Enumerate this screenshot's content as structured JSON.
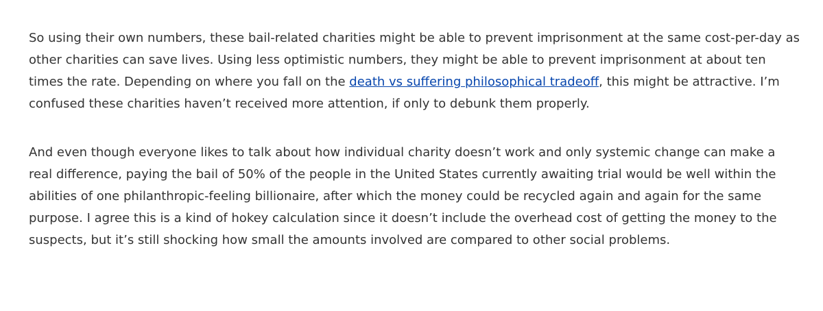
{
  "article": {
    "paragraph_1": {
      "text_before_link": "So using their own numbers, these bail-related charities might be able to prevent imprisonment at the same cost-per-day as other charities can save lives. Using less optimistic numbers, they might be able to prevent imprisonment at about ten times the rate. Depending on where you fall on the ",
      "link_text": "death vs suffering philosophical tradeoff",
      "text_after_link": ", this might be attractive. I’m confused these charities haven’t received more attention, if only to debunk them properly."
    },
    "paragraph_2": {
      "text": "And even though everyone likes to talk about how individual charity doesn’t work and only systemic change can make a real difference, paying the bail of 50% of the people in the United States currently awaiting trial would be well within the abilities of one philanthropic-feeling billionaire, after which the money could be recycled again and again for the same purpose. I agree this is a kind of hokey calculation since it doesn’t include the overhead cost of getting the money to the suspects, but it’s still shocking how small the amounts involved are compared to other social problems."
    },
    "link_color": "#0645ad",
    "text_color": "#333333"
  }
}
